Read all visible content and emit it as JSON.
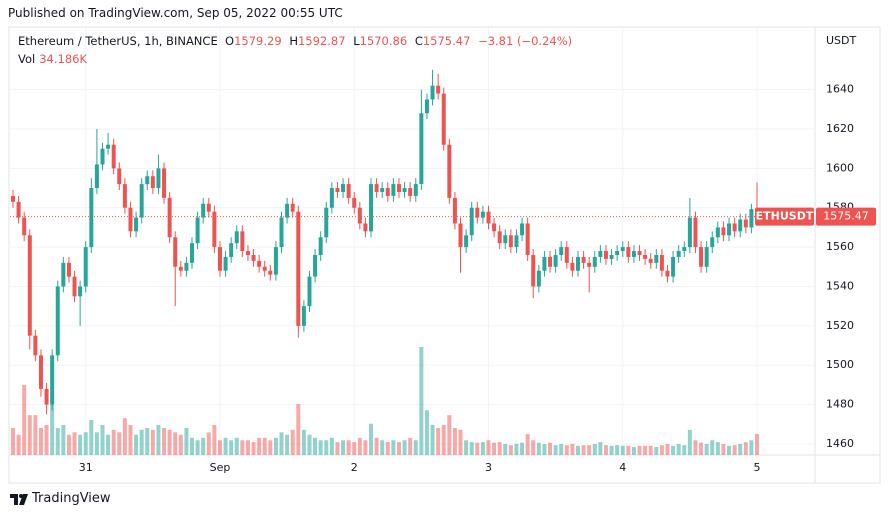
{
  "published": "Published on TradingView.com, Sep 05, 2022 00:55 UTC",
  "brand": "TradingView",
  "chart_data": {
    "type": "candlestick",
    "symbol": "Ethereum / TetherUS, 1h, BINANCE",
    "readout_labels": [
      "O",
      "H",
      "L",
      "C"
    ],
    "change": "−3.81 (−0.24%)",
    "volume_title": "Vol",
    "volume_last_label": "34.186K",
    "currency": "USDT",
    "ticker": "ETHUSDT",
    "up_color": "#26a69a",
    "down_color": "#ef5350",
    "grid": true,
    "ylim": [
      1454.9,
      1671.3
    ],
    "yticks": [
      1460,
      1480,
      1500,
      1520,
      1540,
      1560,
      1580,
      1600,
      1620,
      1640
    ],
    "categories": [
      null,
      null,
      null,
      null,
      null,
      null,
      null,
      null,
      null,
      null,
      null,
      null,
      null,
      "31",
      null,
      null,
      null,
      null,
      null,
      null,
      null,
      null,
      null,
      null,
      null,
      null,
      null,
      null,
      null,
      null,
      null,
      null,
      null,
      null,
      null,
      null,
      null,
      "Sep",
      null,
      null,
      null,
      null,
      null,
      null,
      null,
      null,
      null,
      null,
      null,
      null,
      null,
      null,
      null,
      null,
      null,
      null,
      null,
      null,
      null,
      null,
      null,
      "2",
      null,
      null,
      null,
      null,
      null,
      null,
      null,
      null,
      null,
      null,
      null,
      null,
      null,
      null,
      null,
      null,
      null,
      null,
      null,
      null,
      null,
      null,
      null,
      "3",
      null,
      null,
      null,
      null,
      null,
      null,
      null,
      null,
      null,
      null,
      null,
      null,
      null,
      null,
      null,
      null,
      null,
      null,
      null,
      null,
      null,
      null,
      null,
      "4",
      null,
      null,
      null,
      null,
      null,
      null,
      null,
      null,
      null,
      null,
      null,
      null,
      null,
      null,
      null,
      null,
      null,
      null,
      null,
      null,
      null,
      null,
      null,
      "5"
    ],
    "open": [
      1586,
      1583,
      1575,
      1566,
      1515,
      1505,
      1488,
      1480,
      1505,
      1540,
      1552,
      1545,
      1535,
      1540,
      1560,
      1590,
      1602,
      1610,
      1612,
      1600,
      1592,
      1580,
      1568,
      1575,
      1592,
      1596,
      1590,
      1600,
      1585,
      1565,
      1550,
      1548,
      1552,
      1562,
      1575,
      1582,
      1578,
      1560,
      1548,
      1555,
      1562,
      1568,
      1558,
      1556,
      1553,
      1550,
      1548,
      1546,
      1560,
      1575,
      1582,
      1578,
      1520,
      1530,
      1545,
      1556,
      1565,
      1580,
      1590,
      1588,
      1592,
      1585,
      1580,
      1572,
      1568,
      1592,
      1588,
      1590,
      1586,
      1592,
      1588,
      1590,
      1586,
      1592,
      1628,
      1635,
      1642,
      1638,
      1612,
      1585,
      1572,
      1560,
      1566,
      1580,
      1575,
      1578,
      1572,
      1568,
      1562,
      1566,
      1560,
      1566,
      1572,
      1556,
      1540,
      1548,
      1555,
      1550,
      1556,
      1560,
      1552,
      1548,
      1555,
      1552,
      1550,
      1555,
      1558,
      1554,
      1556,
      1558,
      1560,
      1555,
      1558,
      1556,
      1554,
      1552,
      1556,
      1548,
      1545,
      1555,
      1558,
      1560,
      1575,
      1560,
      1550,
      1560,
      1565,
      1570,
      1566,
      1572,
      1568,
      1574,
      1570,
      1579.29
    ],
    "high": [
      1589,
      1586,
      1578,
      1569,
      1518,
      1508,
      1491,
      1508,
      1543,
      1555,
      1555,
      1548,
      1543,
      1563,
      1595,
      1620,
      1613,
      1618,
      1615,
      1603,
      1595,
      1583,
      1578,
      1595,
      1599,
      1599,
      1607,
      1603,
      1588,
      1568,
      1553,
      1555,
      1565,
      1578,
      1585,
      1585,
      1581,
      1563,
      1558,
      1565,
      1571,
      1571,
      1561,
      1559,
      1556,
      1553,
      1551,
      1563,
      1578,
      1585,
      1585,
      1581,
      1533,
      1548,
      1559,
      1568,
      1583,
      1593,
      1593,
      1595,
      1595,
      1588,
      1583,
      1575,
      1595,
      1595,
      1593,
      1593,
      1595,
      1595,
      1593,
      1593,
      1595,
      1640,
      1638,
      1650,
      1648,
      1641,
      1615,
      1588,
      1575,
      1569,
      1583,
      1583,
      1581,
      1581,
      1575,
      1571,
      1569,
      1569,
      1569,
      1575,
      1575,
      1559,
      1551,
      1558,
      1558,
      1559,
      1563,
      1563,
      1555,
      1558,
      1558,
      1555,
      1558,
      1561,
      1561,
      1559,
      1561,
      1563,
      1563,
      1561,
      1561,
      1559,
      1557,
      1559,
      1559,
      1551,
      1558,
      1561,
      1563,
      1585,
      1578,
      1563,
      1563,
      1568,
      1573,
      1573,
      1575,
      1575,
      1577,
      1577,
      1582,
      1592.87
    ],
    "low": [
      1580,
      1572,
      1563,
      1508,
      1502,
      1484,
      1475,
      1477,
      1502,
      1537,
      1542,
      1532,
      1520,
      1537,
      1557,
      1587,
      1599,
      1607,
      1597,
      1589,
      1577,
      1565,
      1565,
      1572,
      1589,
      1587,
      1587,
      1582,
      1562,
      1530,
      1545,
      1545,
      1549,
      1559,
      1572,
      1575,
      1557,
      1545,
      1545,
      1552,
      1559,
      1555,
      1553,
      1550,
      1547,
      1545,
      1543,
      1543,
      1557,
      1572,
      1575,
      1514,
      1517,
      1527,
      1542,
      1553,
      1562,
      1577,
      1585,
      1585,
      1582,
      1577,
      1569,
      1565,
      1565,
      1585,
      1585,
      1583,
      1583,
      1585,
      1585,
      1583,
      1583,
      1589,
      1625,
      1632,
      1635,
      1609,
      1582,
      1569,
      1547,
      1557,
      1563,
      1572,
      1572,
      1569,
      1565,
      1559,
      1559,
      1557,
      1557,
      1563,
      1553,
      1534,
      1537,
      1545,
      1547,
      1547,
      1553,
      1549,
      1545,
      1545,
      1549,
      1537,
      1547,
      1552,
      1551,
      1551,
      1553,
      1555,
      1552,
      1552,
      1553,
      1551,
      1549,
      1549,
      1545,
      1542,
      1542,
      1552,
      1555,
      1557,
      1557,
      1547,
      1547,
      1557,
      1562,
      1563,
      1563,
      1565,
      1565,
      1567,
      1567,
      1570.86
    ],
    "close": [
      1583,
      1575,
      1566,
      1515,
      1505,
      1488,
      1480,
      1505,
      1540,
      1552,
      1545,
      1535,
      1540,
      1560,
      1590,
      1602,
      1610,
      1612,
      1600,
      1592,
      1580,
      1568,
      1575,
      1592,
      1596,
      1590,
      1600,
      1585,
      1565,
      1550,
      1548,
      1552,
      1562,
      1575,
      1582,
      1578,
      1560,
      1548,
      1555,
      1562,
      1568,
      1558,
      1556,
      1553,
      1550,
      1548,
      1546,
      1560,
      1575,
      1582,
      1578,
      1520,
      1530,
      1545,
      1556,
      1565,
      1580,
      1590,
      1588,
      1592,
      1585,
      1580,
      1572,
      1568,
      1592,
      1588,
      1590,
      1586,
      1592,
      1588,
      1590,
      1586,
      1592,
      1628,
      1635,
      1642,
      1638,
      1612,
      1585,
      1572,
      1560,
      1566,
      1580,
      1575,
      1578,
      1572,
      1568,
      1562,
      1566,
      1560,
      1566,
      1572,
      1556,
      1540,
      1548,
      1555,
      1550,
      1556,
      1560,
      1552,
      1548,
      1555,
      1552,
      1550,
      1555,
      1558,
      1554,
      1556,
      1558,
      1560,
      1555,
      1558,
      1556,
      1554,
      1552,
      1556,
      1548,
      1545,
      1555,
      1558,
      1560,
      1575,
      1560,
      1550,
      1560,
      1565,
      1570,
      1566,
      1572,
      1568,
      1574,
      1570,
      1579.29,
      1575.47
    ],
    "volume": [
      44,
      33,
      114,
      65,
      65,
      44,
      49,
      82,
      44,
      49,
      33,
      37,
      33,
      37,
      57,
      37,
      49,
      33,
      41,
      37,
      60,
      49,
      33,
      41,
      44,
      41,
      49,
      44,
      41,
      37,
      33,
      44,
      28,
      24,
      28,
      37,
      49,
      24,
      28,
      24,
      28,
      24,
      24,
      21,
      28,
      28,
      24,
      28,
      37,
      33,
      41,
      83,
      41,
      33,
      28,
      24,
      24,
      28,
      21,
      24,
      24,
      21,
      28,
      24,
      51,
      28,
      24,
      21,
      24,
      21,
      24,
      28,
      24,
      176,
      73,
      49,
      44,
      49,
      65,
      44,
      41,
      24,
      21,
      20,
      21,
      24,
      20,
      21,
      18,
      16,
      18,
      20,
      34,
      24,
      20,
      18,
      20,
      16,
      18,
      16,
      18,
      15,
      16,
      16,
      18,
      21,
      16,
      15,
      16,
      15,
      15,
      13,
      15,
      15,
      15,
      13,
      16,
      18,
      15,
      18,
      16,
      41,
      24,
      20,
      18,
      24,
      21,
      18,
      15,
      16,
      18,
      21,
      24,
      34.186
    ]
  }
}
